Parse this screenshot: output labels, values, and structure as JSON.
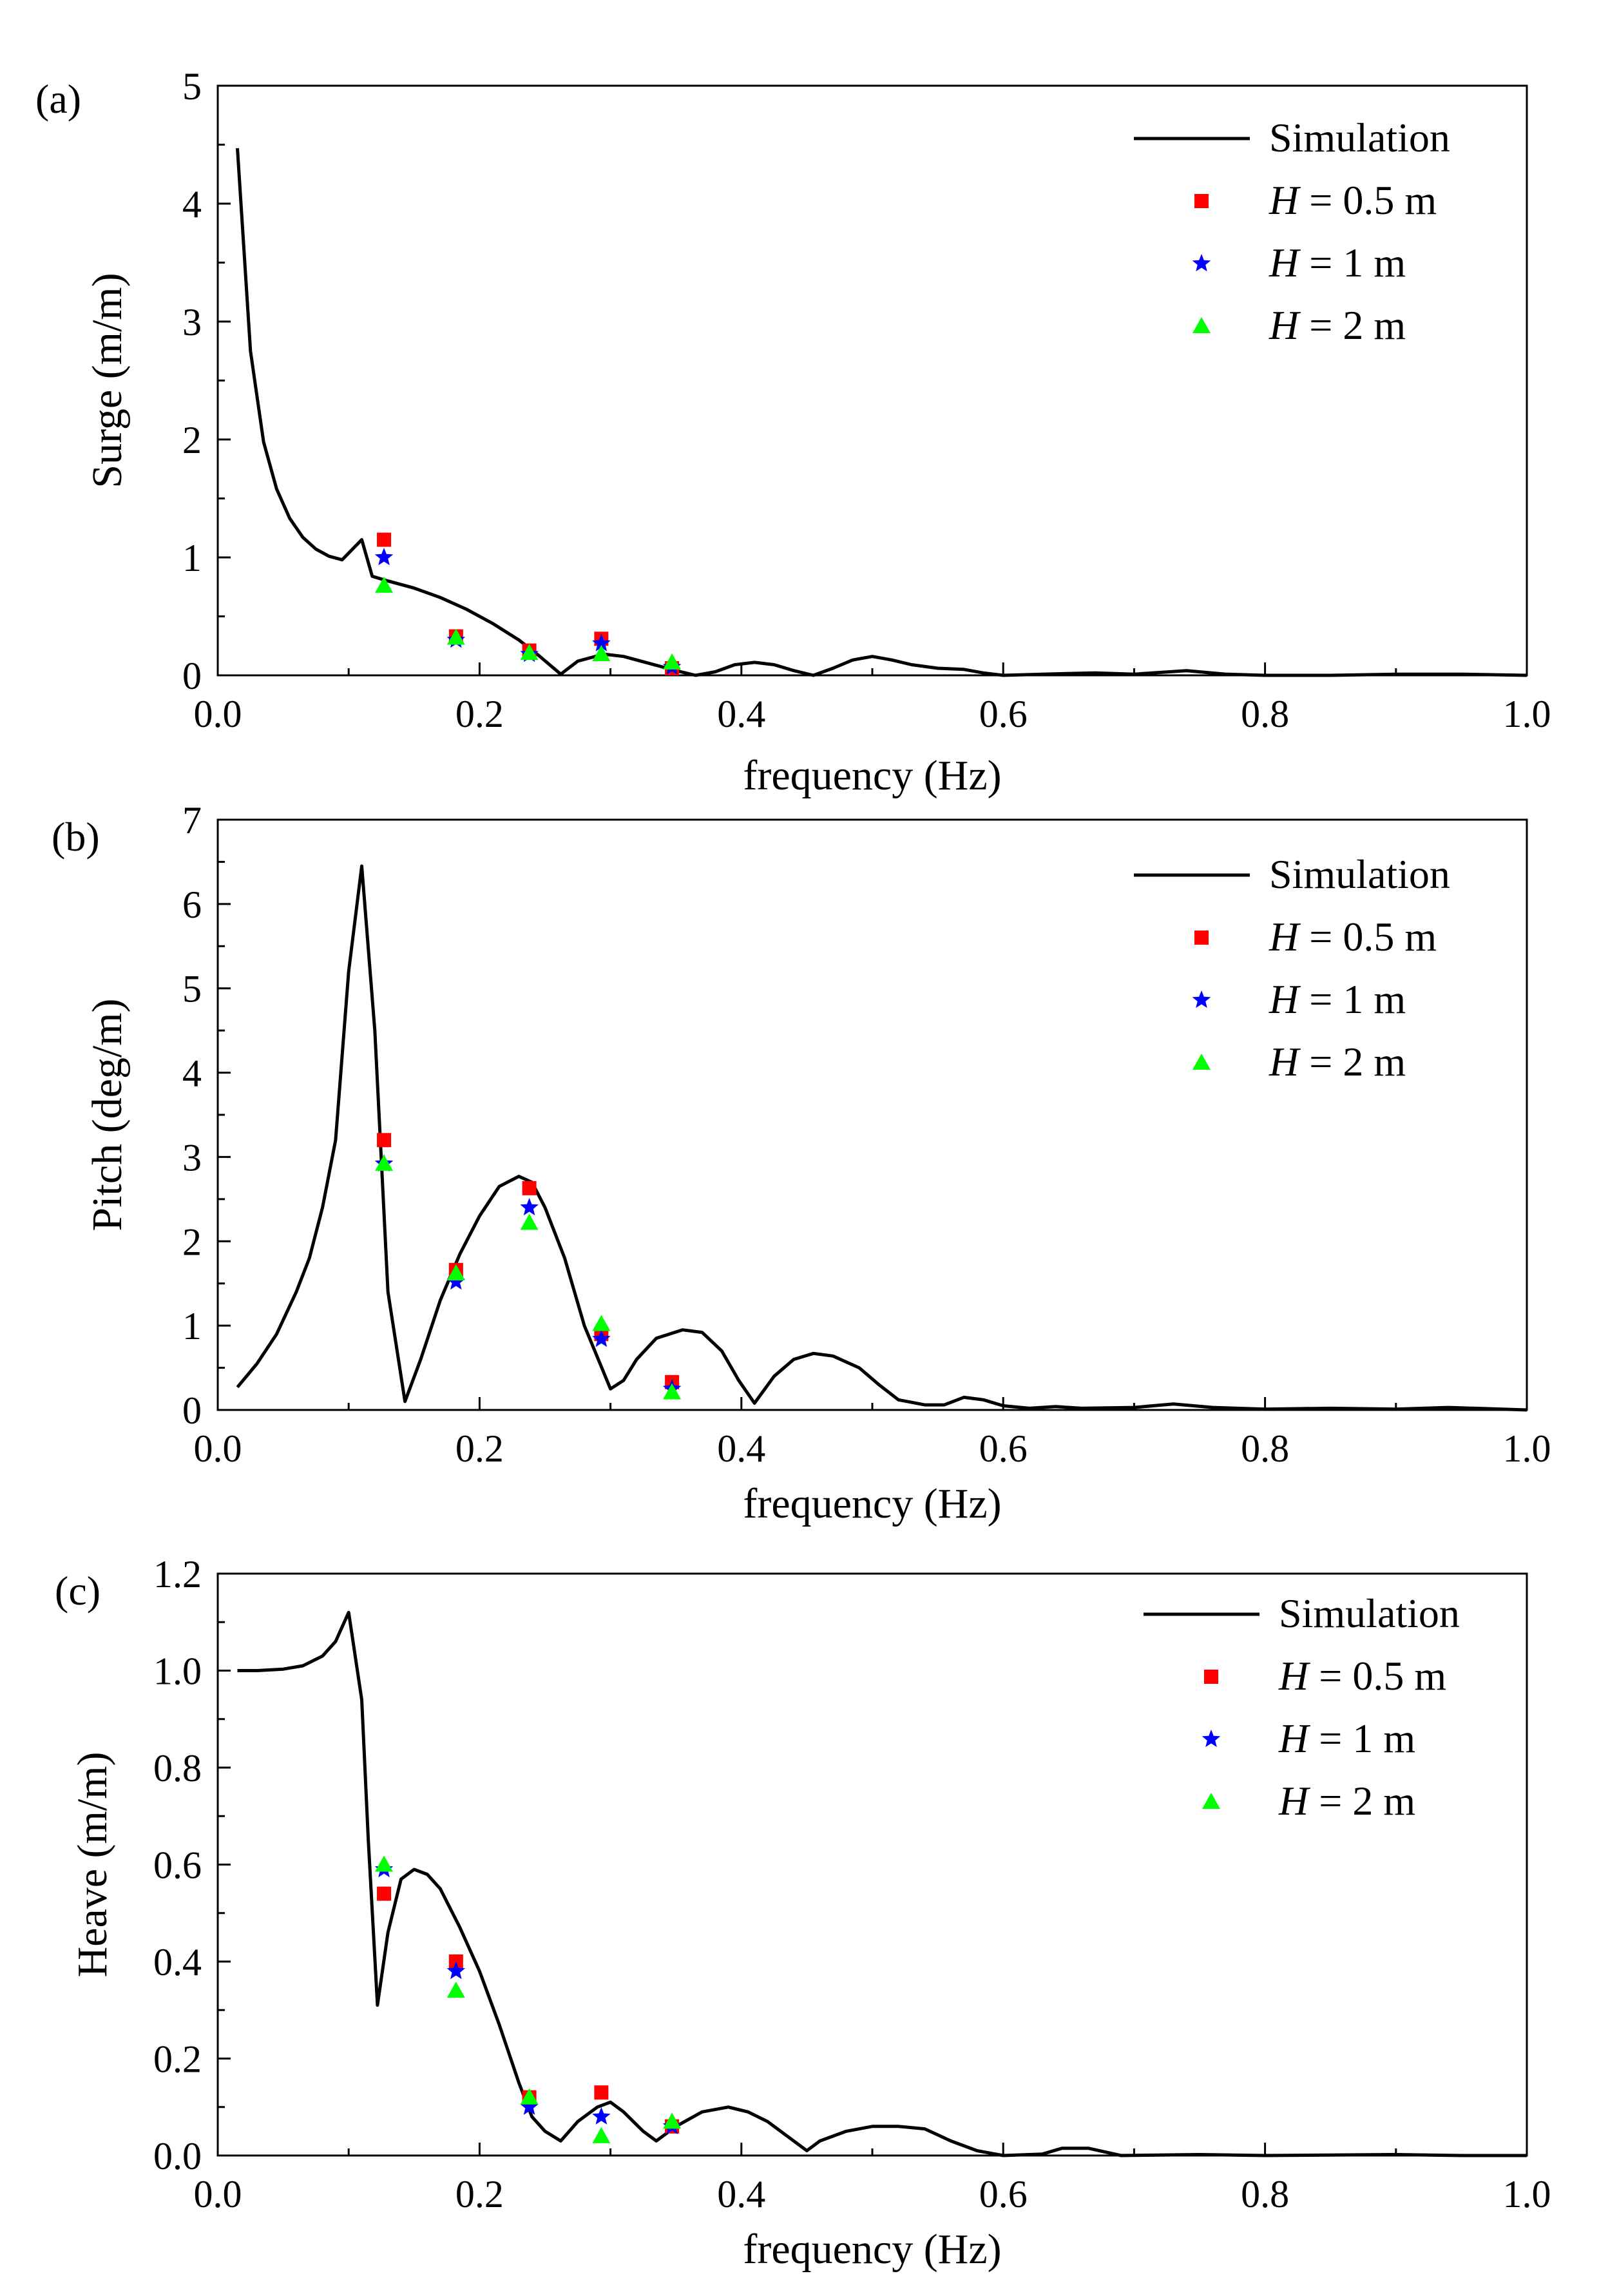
{
  "chart_data": [
    {
      "type": "line",
      "panel_label": "(a)",
      "xlabel": "frequency (Hz)",
      "ylabel": "Surge (m/m)",
      "xlim": [
        0.0,
        1.0
      ],
      "ylim": [
        0,
        5
      ],
      "xticks": [
        0.0,
        0.2,
        0.4,
        0.6,
        0.8,
        1.0
      ],
      "xtick_labels": [
        "0.0",
        "0.2",
        "0.4",
        "0.6",
        "0.8",
        "1.0"
      ],
      "yticks": [
        0,
        1,
        2,
        3,
        4,
        5
      ],
      "ytick_labels": [
        "0",
        "1",
        "2",
        "3",
        "4",
        "5"
      ],
      "legend": {
        "position": "top-right",
        "entries": [
          {
            "key": "sim",
            "label": "Simulation"
          },
          {
            "key": "h05",
            "var": "H",
            "rest": " = 0.5 m"
          },
          {
            "key": "h1",
            "var": "H",
            "rest": " = 1 m"
          },
          {
            "key": "h2",
            "var": "H",
            "rest": " = 2 m"
          }
        ]
      },
      "series": [
        {
          "name": "Simulation",
          "kind": "line",
          "color": "#000000",
          "points": [
            [
              0.015,
              4.47
            ],
            [
              0.025,
              2.75
            ],
            [
              0.035,
              1.98
            ],
            [
              0.045,
              1.58
            ],
            [
              0.055,
              1.33
            ],
            [
              0.065,
              1.17
            ],
            [
              0.075,
              1.07
            ],
            [
              0.085,
              1.01
            ],
            [
              0.095,
              0.98
            ],
            [
              0.11,
              1.15
            ],
            [
              0.118,
              0.84
            ],
            [
              0.13,
              0.8
            ],
            [
              0.15,
              0.74
            ],
            [
              0.17,
              0.66
            ],
            [
              0.19,
              0.56
            ],
            [
              0.21,
              0.44
            ],
            [
              0.23,
              0.3
            ],
            [
              0.245,
              0.17
            ],
            [
              0.262,
              0.01
            ],
            [
              0.275,
              0.12
            ],
            [
              0.295,
              0.18
            ],
            [
              0.31,
              0.16
            ],
            [
              0.33,
              0.1
            ],
            [
              0.35,
              0.04
            ],
            [
              0.365,
              0.0
            ],
            [
              0.38,
              0.03
            ],
            [
              0.395,
              0.09
            ],
            [
              0.41,
              0.11
            ],
            [
              0.425,
              0.09
            ],
            [
              0.44,
              0.04
            ],
            [
              0.455,
              0.0
            ],
            [
              0.47,
              0.06
            ],
            [
              0.485,
              0.13
            ],
            [
              0.5,
              0.16
            ],
            [
              0.515,
              0.13
            ],
            [
              0.53,
              0.09
            ],
            [
              0.55,
              0.06
            ],
            [
              0.57,
              0.05
            ],
            [
              0.585,
              0.02
            ],
            [
              0.6,
              0.0
            ],
            [
              0.63,
              0.01
            ],
            [
              0.67,
              0.02
            ],
            [
              0.7,
              0.01
            ],
            [
              0.74,
              0.04
            ],
            [
              0.77,
              0.01
            ],
            [
              0.8,
              0.0
            ],
            [
              0.85,
              0.0
            ],
            [
              0.9,
              0.01
            ],
            [
              0.95,
              0.01
            ],
            [
              1.0,
              0.0
            ]
          ]
        },
        {
          "name": "H = 0.5 m",
          "kind": "scatter",
          "marker": "square",
          "color": "#ff0000",
          "points": [
            [
              0.127,
              1.15
            ],
            [
              0.182,
              0.33
            ],
            [
              0.238,
              0.21
            ],
            [
              0.293,
              0.31
            ],
            [
              0.347,
              0.06
            ]
          ]
        },
        {
          "name": "H = 1 m",
          "kind": "scatter",
          "marker": "star",
          "color": "#0000ff",
          "points": [
            [
              0.127,
              1.0
            ],
            [
              0.182,
              0.3
            ],
            [
              0.238,
              0.18
            ],
            [
              0.293,
              0.27
            ],
            [
              0.347,
              0.07
            ]
          ]
        },
        {
          "name": "H = 2 m",
          "kind": "scatter",
          "marker": "triangle",
          "color": "#00ff00",
          "points": [
            [
              0.127,
              0.76
            ],
            [
              0.182,
              0.32
            ],
            [
              0.238,
              0.19
            ],
            [
              0.293,
              0.18
            ],
            [
              0.347,
              0.11
            ]
          ]
        }
      ]
    },
    {
      "type": "line",
      "panel_label": "(b)",
      "xlabel": "frequency (Hz)",
      "ylabel": "Pitch (deg/m)",
      "xlim": [
        0.0,
        1.0
      ],
      "ylim": [
        0,
        7
      ],
      "xticks": [
        0.0,
        0.2,
        0.4,
        0.6,
        0.8,
        1.0
      ],
      "xtick_labels": [
        "0.0",
        "0.2",
        "0.4",
        "0.6",
        "0.8",
        "1.0"
      ],
      "yticks": [
        0,
        1,
        2,
        3,
        4,
        5,
        6,
        7
      ],
      "ytick_labels": [
        "0",
        "1",
        "2",
        "3",
        "4",
        "5",
        "6",
        "7"
      ],
      "legend": {
        "position": "top-right",
        "entries": [
          {
            "key": "sim",
            "label": "Simulation"
          },
          {
            "key": "h05",
            "var": "H",
            "rest": " = 0.5 m"
          },
          {
            "key": "h1",
            "var": "H",
            "rest": " = 1 m"
          },
          {
            "key": "h2",
            "var": "H",
            "rest": " = 2 m"
          }
        ]
      },
      "series": [
        {
          "name": "Simulation",
          "kind": "line",
          "color": "#000000",
          "points": [
            [
              0.015,
              0.27
            ],
            [
              0.03,
              0.55
            ],
            [
              0.045,
              0.9
            ],
            [
              0.06,
              1.4
            ],
            [
              0.07,
              1.8
            ],
            [
              0.08,
              2.4
            ],
            [
              0.09,
              3.2
            ],
            [
              0.1,
              5.2
            ],
            [
              0.11,
              6.45
            ],
            [
              0.12,
              4.5
            ],
            [
              0.13,
              1.4
            ],
            [
              0.143,
              0.1
            ],
            [
              0.155,
              0.6
            ],
            [
              0.17,
              1.3
            ],
            [
              0.185,
              1.85
            ],
            [
              0.2,
              2.3
            ],
            [
              0.215,
              2.65
            ],
            [
              0.23,
              2.77
            ],
            [
              0.24,
              2.7
            ],
            [
              0.25,
              2.4
            ],
            [
              0.265,
              1.8
            ],
            [
              0.28,
              1.0
            ],
            [
              0.3,
              0.25
            ],
            [
              0.31,
              0.35
            ],
            [
              0.32,
              0.6
            ],
            [
              0.335,
              0.85
            ],
            [
              0.355,
              0.95
            ],
            [
              0.37,
              0.92
            ],
            [
              0.385,
              0.7
            ],
            [
              0.398,
              0.35
            ],
            [
              0.41,
              0.08
            ],
            [
              0.425,
              0.4
            ],
            [
              0.44,
              0.6
            ],
            [
              0.455,
              0.67
            ],
            [
              0.47,
              0.64
            ],
            [
              0.49,
              0.5
            ],
            [
              0.505,
              0.3
            ],
            [
              0.52,
              0.12
            ],
            [
              0.54,
              0.06
            ],
            [
              0.555,
              0.06
            ],
            [
              0.57,
              0.15
            ],
            [
              0.585,
              0.12
            ],
            [
              0.6,
              0.05
            ],
            [
              0.62,
              0.02
            ],
            [
              0.64,
              0.04
            ],
            [
              0.66,
              0.02
            ],
            [
              0.7,
              0.03
            ],
            [
              0.73,
              0.07
            ],
            [
              0.76,
              0.03
            ],
            [
              0.8,
              0.01
            ],
            [
              0.85,
              0.02
            ],
            [
              0.9,
              0.01
            ],
            [
              0.94,
              0.03
            ],
            [
              1.0,
              0.0
            ]
          ]
        },
        {
          "name": "H = 0.5 m",
          "kind": "scatter",
          "marker": "square",
          "color": "#ff0000",
          "points": [
            [
              0.127,
              3.2
            ],
            [
              0.182,
              1.66
            ],
            [
              0.238,
              2.63
            ],
            [
              0.293,
              0.9
            ],
            [
              0.347,
              0.33
            ]
          ]
        },
        {
          "name": "H = 1 m",
          "kind": "scatter",
          "marker": "star",
          "color": "#0000ff",
          "points": [
            [
              0.127,
              2.92
            ],
            [
              0.182,
              1.52
            ],
            [
              0.238,
              2.4
            ],
            [
              0.293,
              0.84
            ],
            [
              0.347,
              0.25
            ]
          ]
        },
        {
          "name": "H = 2 m",
          "kind": "scatter",
          "marker": "triangle",
          "color": "#00ff00",
          "points": [
            [
              0.127,
              2.92
            ],
            [
              0.182,
              1.62
            ],
            [
              0.238,
              2.22
            ],
            [
              0.293,
              1.02
            ],
            [
              0.347,
              0.21
            ]
          ]
        }
      ]
    },
    {
      "type": "line",
      "panel_label": "(c)",
      "xlabel": "frequency (Hz)",
      "ylabel": "Heave (m/m)",
      "xlim": [
        0.0,
        1.0
      ],
      "ylim": [
        0.0,
        1.2
      ],
      "xticks": [
        0.0,
        0.2,
        0.4,
        0.6,
        0.8,
        1.0
      ],
      "xtick_labels": [
        "0.0",
        "0.2",
        "0.4",
        "0.6",
        "0.8",
        "1.0"
      ],
      "yticks": [
        0.0,
        0.2,
        0.4,
        0.6,
        0.8,
        1.0,
        1.2
      ],
      "ytick_labels": [
        "0.0",
        "0.2",
        "0.4",
        "0.6",
        "0.8",
        "1.0",
        "1.2"
      ],
      "legend": {
        "position": "top-right",
        "entries": [
          {
            "key": "sim",
            "label": "Simulation"
          },
          {
            "key": "h05",
            "var": "H",
            "rest": " = 0.5 m"
          },
          {
            "key": "h1",
            "var": "H",
            "rest": " = 1 m"
          },
          {
            "key": "h2",
            "var": "H",
            "rest": " = 2 m"
          }
        ]
      },
      "series": [
        {
          "name": "Simulation",
          "kind": "line",
          "color": "#000000",
          "points": [
            [
              0.015,
              1.0
            ],
            [
              0.03,
              1.0
            ],
            [
              0.05,
              1.003
            ],
            [
              0.065,
              1.01
            ],
            [
              0.08,
              1.03
            ],
            [
              0.09,
              1.06
            ],
            [
              0.1,
              1.12
            ],
            [
              0.11,
              0.94
            ],
            [
              0.115,
              0.65
            ],
            [
              0.122,
              0.31
            ],
            [
              0.13,
              0.46
            ],
            [
              0.14,
              0.57
            ],
            [
              0.15,
              0.59
            ],
            [
              0.16,
              0.58
            ],
            [
              0.17,
              0.55
            ],
            [
              0.185,
              0.47
            ],
            [
              0.2,
              0.38
            ],
            [
              0.215,
              0.27
            ],
            [
              0.23,
              0.15
            ],
            [
              0.24,
              0.08
            ],
            [
              0.25,
              0.05
            ],
            [
              0.262,
              0.03
            ],
            [
              0.275,
              0.07
            ],
            [
              0.29,
              0.1
            ],
            [
              0.3,
              0.11
            ],
            [
              0.31,
              0.09
            ],
            [
              0.325,
              0.05
            ],
            [
              0.335,
              0.03
            ],
            [
              0.35,
              0.06
            ],
            [
              0.37,
              0.09
            ],
            [
              0.39,
              0.1
            ],
            [
              0.405,
              0.09
            ],
            [
              0.42,
              0.07
            ],
            [
              0.435,
              0.04
            ],
            [
              0.45,
              0.01
            ],
            [
              0.46,
              0.03
            ],
            [
              0.48,
              0.05
            ],
            [
              0.5,
              0.06
            ],
            [
              0.52,
              0.06
            ],
            [
              0.54,
              0.055
            ],
            [
              0.56,
              0.03
            ],
            [
              0.58,
              0.01
            ],
            [
              0.6,
              0.0
            ],
            [
              0.63,
              0.003
            ],
            [
              0.645,
              0.015
            ],
            [
              0.665,
              0.015
            ],
            [
              0.69,
              0.0
            ],
            [
              0.75,
              0.002
            ],
            [
              0.8,
              0.0
            ],
            [
              0.9,
              0.002
            ],
            [
              0.95,
              0.0
            ],
            [
              1.0,
              0.0
            ]
          ]
        },
        {
          "name": "H = 0.5 m",
          "kind": "scatter",
          "marker": "square",
          "color": "#ff0000",
          "points": [
            [
              0.127,
              0.54
            ],
            [
              0.182,
              0.4
            ],
            [
              0.238,
              0.12
            ],
            [
              0.293,
              0.13
            ],
            [
              0.347,
              0.06
            ]
          ]
        },
        {
          "name": "H = 1 m",
          "kind": "scatter",
          "marker": "star",
          "color": "#0000ff",
          "points": [
            [
              0.127,
              0.59
            ],
            [
              0.182,
              0.38
            ],
            [
              0.238,
              0.1
            ],
            [
              0.293,
              0.08
            ],
            [
              0.347,
              0.06
            ]
          ]
        },
        {
          "name": "H = 2 m",
          "kind": "scatter",
          "marker": "triangle",
          "color": "#00ff00",
          "points": [
            [
              0.127,
              0.6
            ],
            [
              0.182,
              0.34
            ],
            [
              0.238,
              0.12
            ],
            [
              0.293,
              0.04
            ],
            [
              0.347,
              0.07
            ]
          ]
        }
      ]
    }
  ]
}
